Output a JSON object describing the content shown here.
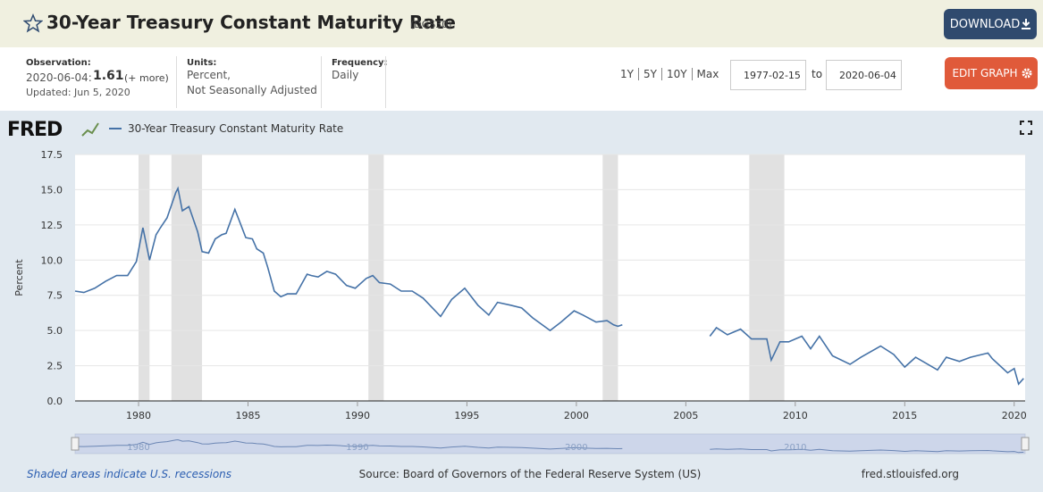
{
  "header": {
    "title": "30-Year Treasury Constant Maturity Rate",
    "series_id": "(DGS30)",
    "download": "DOWNLOAD"
  },
  "info": {
    "observation_label": "Observation:",
    "observation_date": "2020-06-04:",
    "observation_value": 1.61,
    "more": "(+ more)",
    "updated": "Updated: Jun 5, 2020",
    "units_label": "Units:",
    "units_1": "Percent,",
    "units_2": "Not Seasonally Adjusted",
    "frequency_label": "Frequency:",
    "frequency": "Daily"
  },
  "controls": {
    "ranges": [
      "1Y",
      "5Y",
      "10Y",
      "Max"
    ],
    "start": "1977-02-15",
    "to": "to",
    "end": "2020-06-04",
    "edit": "EDIT GRAPH"
  },
  "logo": "FRED",
  "chart_data": {
    "type": "line",
    "y_label": "Percent",
    "x": [
      1977.1,
      1977.5,
      1978.0,
      1978.5,
      1979.0,
      1979.5,
      1979.9,
      1980.2,
      1980.5,
      1980.8,
      1981.0,
      1981.3,
      1981.7,
      1981.8,
      1982.0,
      1982.3,
      1982.7,
      1982.9,
      1983.2,
      1983.5,
      1983.8,
      1984.0,
      1984.4,
      1984.6,
      1984.9,
      1985.2,
      1985.4,
      1985.7,
      1985.9,
      1986.2,
      1986.5,
      1986.8,
      1987.2,
      1987.7,
      1987.9,
      1988.2,
      1988.6,
      1989.0,
      1989.5,
      1989.9,
      1990.4,
      1990.7,
      1991.0,
      1991.5,
      1992.0,
      1992.5,
      1993.0,
      1993.8,
      1994.3,
      1994.9,
      1995.5,
      1996.0,
      1996.4,
      1997.0,
      1997.5,
      1998.0,
      1998.8,
      1999.3,
      1999.9,
      2000.3,
      2000.9,
      2001.4,
      2001.7,
      2001.9,
      2002.1,
      2004.0,
      2006.1,
      2006.4,
      2006.9,
      2007.5,
      2008.0,
      2008.7,
      2008.9,
      2009.3,
      2009.7,
      2010.3,
      2010.7,
      2011.1,
      2011.7,
      2012.5,
      2013.0,
      2013.9,
      2014.5,
      2015.0,
      2015.5,
      2016.5,
      2016.9,
      2017.5,
      2018.0,
      2018.8,
      2019.0,
      2019.7,
      2020.0,
      2020.2,
      2020.43
    ],
    "series": [
      {
        "name": "30-Year Treasury Constant Maturity Rate",
        "color": "#4572a7",
        "values": [
          7.8,
          7.7,
          8.0,
          8.5,
          8.9,
          8.9,
          9.9,
          12.3,
          10.0,
          11.8,
          12.3,
          13.0,
          14.8,
          15.1,
          13.5,
          13.8,
          12.0,
          10.6,
          10.5,
          11.5,
          11.8,
          11.9,
          13.6,
          12.8,
          11.6,
          11.5,
          10.8,
          10.5,
          9.5,
          7.8,
          7.4,
          7.6,
          7.6,
          9.0,
          8.9,
          8.8,
          9.2,
          9.0,
          8.2,
          8.0,
          8.7,
          8.9,
          8.4,
          8.3,
          7.8,
          7.8,
          7.3,
          6.0,
          7.2,
          8.0,
          6.8,
          6.1,
          7.0,
          6.8,
          6.6,
          5.9,
          5.0,
          5.6,
          6.4,
          6.1,
          5.6,
          5.7,
          5.4,
          5.3,
          5.4,
          null,
          4.6,
          5.2,
          4.7,
          5.1,
          4.4,
          4.4,
          2.9,
          4.2,
          4.2,
          4.6,
          3.7,
          4.6,
          3.2,
          2.6,
          3.1,
          3.9,
          3.3,
          2.4,
          3.1,
          2.2,
          3.1,
          2.8,
          3.1,
          3.4,
          3.0,
          2.0,
          2.3,
          1.2,
          1.6
        ]
      }
    ],
    "recessions": [
      [
        1980.0,
        1980.5
      ],
      [
        1981.5,
        1982.9
      ],
      [
        1990.5,
        1991.2
      ],
      [
        2001.2,
        2001.9
      ],
      [
        2007.9,
        2009.5
      ]
    ],
    "xlim": [
      1977.1,
      2020.5
    ],
    "xticks": [
      1980,
      1985,
      1990,
      1995,
      2000,
      2005,
      2010,
      2015,
      2020
    ],
    "ylim": [
      0,
      17.5
    ],
    "yticks": [
      {
        "value": 0,
        "label": "0.0"
      },
      2.5,
      {
        "value": 5,
        "label": "5.0"
      },
      7.5,
      {
        "value": 10,
        "label": "10.0"
      },
      12.5,
      {
        "value": 15,
        "label": "15.0"
      },
      17.5
    ],
    "navigator_xticks": [
      1980,
      1990,
      2000,
      2010
    ],
    "grid": true
  },
  "footer": {
    "recession_note": "Shaded areas indicate U.S. recessions",
    "source": "Source: Board of Governors of the Federal Reserve System (US)",
    "site": "fred.stlouisfed.org"
  }
}
